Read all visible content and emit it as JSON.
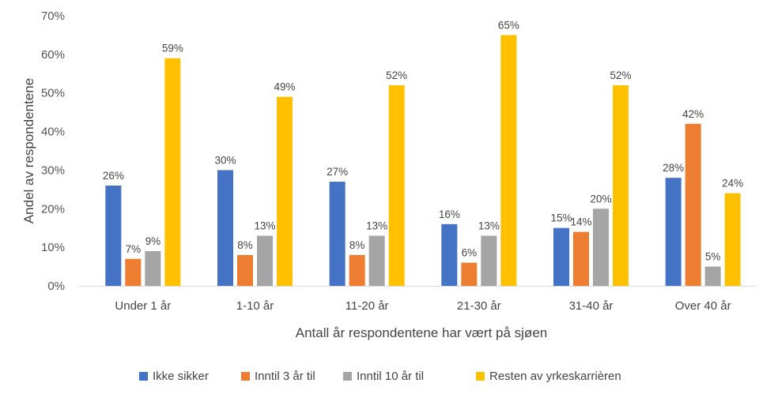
{
  "chart_data": {
    "type": "bar",
    "title": "",
    "xlabel": "Antall år respondentene har vært på sjøen",
    "ylabel": "Andel av respondentene",
    "ylim": [
      0,
      70
    ],
    "yticks": [
      "0%",
      "10%",
      "20%",
      "30%",
      "40%",
      "50%",
      "60%",
      "70%"
    ],
    "grid": false,
    "legend_position": "bottom",
    "categories": [
      "Under 1 år",
      "1-10 år",
      "11-20 år",
      "21-30 år",
      "31-40 år",
      "Over 40 år"
    ],
    "series": [
      {
        "name": "Ikke sikker",
        "color": "#4472C4",
        "values": [
          26,
          30,
          27,
          16,
          15,
          28
        ]
      },
      {
        "name": "Inntil 3 år til",
        "color": "#ED7D31",
        "values": [
          7,
          8,
          8,
          6,
          14,
          42
        ]
      },
      {
        "name": "Inntil 10 år til",
        "color": "#A5A5A5",
        "values": [
          9,
          13,
          13,
          13,
          20,
          5
        ]
      },
      {
        "name": "Resten av yrkeskarrièren",
        "color": "#FFC000",
        "values": [
          59,
          49,
          52,
          65,
          52,
          24
        ]
      }
    ]
  }
}
